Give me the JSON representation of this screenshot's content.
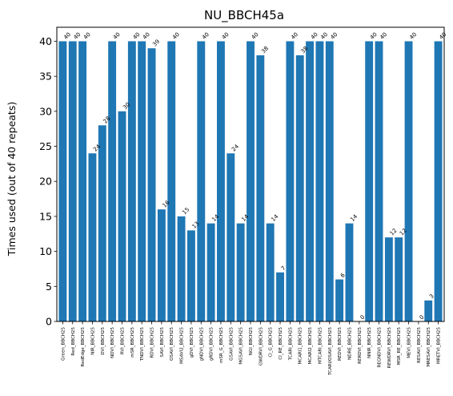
{
  "chart_data": {
    "type": "bar",
    "title": "NU_BBCH45a",
    "xlabel": "",
    "ylabel": "Times used (out of 40 repeats)",
    "ylim": [
      0,
      42
    ],
    "yticks": [
      "0",
      "5",
      "10",
      "15",
      "20",
      "25",
      "30",
      "35",
      "40"
    ],
    "bar_color": "#1f77b4",
    "grid": false,
    "categories": [
      "Green_BBCH25",
      "Red_BBCH25",
      "RedEdge_BBCH25",
      "NIR_BBCH25",
      "DVI_BBCH25",
      "NDVI_BBCH25",
      "RVI_BBCH25",
      "mSR_BBCH25",
      "TNDVI_BBCH25",
      "RDVI_BBCH25",
      "SAVI_BBCH25",
      "OSAVI_BBCH25",
      "MSAVI2_BBCH25",
      "gDVI_BBCH25",
      "gNDVI_BBCH25",
      "gRDVI_BBCH25",
      "mSR_G_BBCH25",
      "GSAVI_BBCH25",
      "MGSAVI_BBCH25",
      "NGI_BBCH25",
      "GWDRVI_BBCH25",
      "CI_G_BBCH25",
      "CI_RE_BBCH25",
      "TCARI_BBCH25",
      "MCARI1_BBCH25",
      "MCARI2_BBCH25",
      "MTCARI_BBCH25",
      "TCARI/OSAVI_BBCH25",
      "REDVI_BBCH25",
      "NDRE_BBCH25",
      "RERDVI_BBCH25",
      "NNIR_BBCH25",
      "REGNDVI_BBCH25",
      "REWDRVI_BBCH25",
      "MSR_RE_BBCH25",
      "MEVI_BBCH25",
      "RESAVI_BBCH25",
      "MRESAVI_BBCH25",
      "MRETVI_BBCH25"
    ],
    "values": [
      40,
      40,
      40,
      24,
      28,
      40,
      30,
      40,
      40,
      39,
      16,
      40,
      15,
      13,
      40,
      14,
      40,
      24,
      14,
      40,
      38,
      14,
      7,
      40,
      38,
      40,
      40,
      40,
      6,
      14,
      0,
      40,
      40,
      12,
      12,
      40,
      0,
      3,
      40
    ]
  }
}
